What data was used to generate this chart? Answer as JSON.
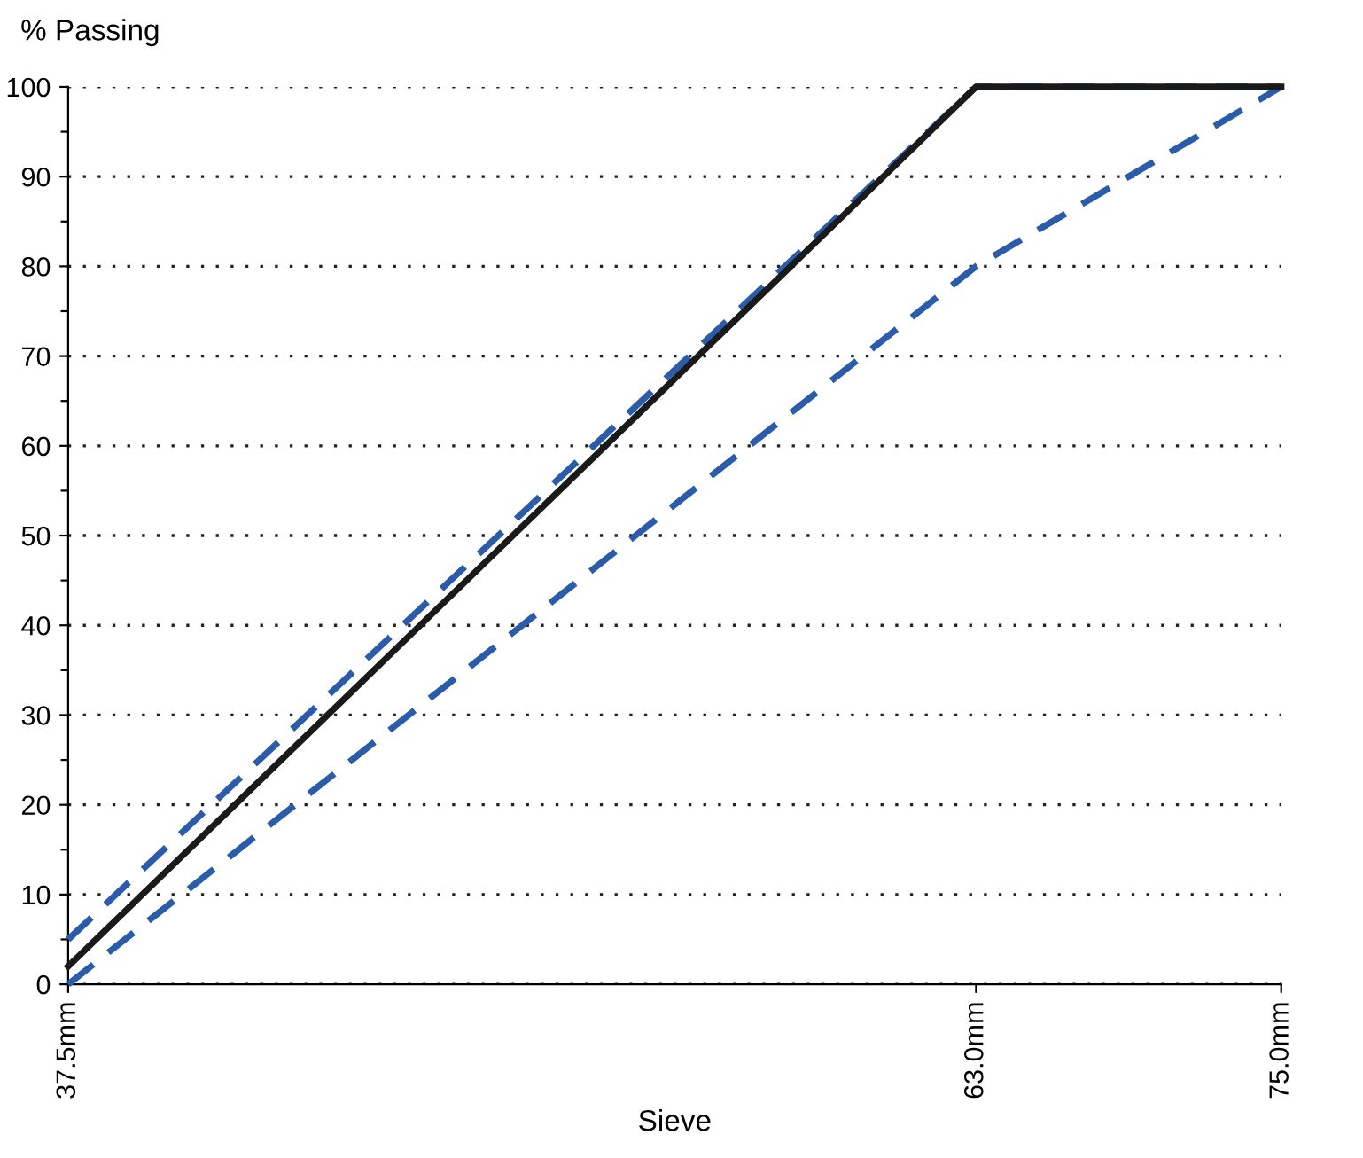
{
  "chart_data": {
    "type": "line",
    "ylabel": "% Passing",
    "xlabel": "Sieve",
    "x": [
      37.5,
      63.0,
      75.0
    ],
    "series": [
      {
        "color": "#2a5caa",
        "values": [
          0,
          80,
          100
        ],
        "line_style": "dashed"
      },
      {
        "color": "#2a5caa",
        "values": [
          5,
          100,
          100
        ],
        "line_style": "dashed"
      },
      {
        "color": "#1a1a1a",
        "values": [
          2,
          100,
          100
        ],
        "line_style": "solid"
      }
    ],
    "log": "x",
    "xlim": [
      37.5,
      75.0
    ],
    "xticks": [
      {
        "value": 37.5,
        "label": "37.5mm"
      },
      {
        "value": 63.0,
        "label": "63.0mm"
      },
      {
        "value": 75.0,
        "label": "75.0mm"
      }
    ],
    "ylim": [
      0,
      100
    ],
    "yticks": [
      0,
      {
        "value": 5,
        "label": null
      },
      10,
      {
        "value": 15,
        "label": null
      },
      20,
      {
        "value": 25,
        "label": null
      },
      30,
      {
        "value": 35,
        "label": null
      },
      40,
      {
        "value": 45,
        "label": null
      },
      50,
      {
        "value": 55,
        "label": null
      },
      60,
      {
        "value": 65,
        "label": null
      },
      70,
      {
        "value": 75,
        "label": null
      },
      80,
      {
        "value": 85,
        "label": null
      },
      90,
      {
        "value": 95,
        "label": null
      },
      100
    ],
    "grid": "y",
    "marker": "none"
  }
}
